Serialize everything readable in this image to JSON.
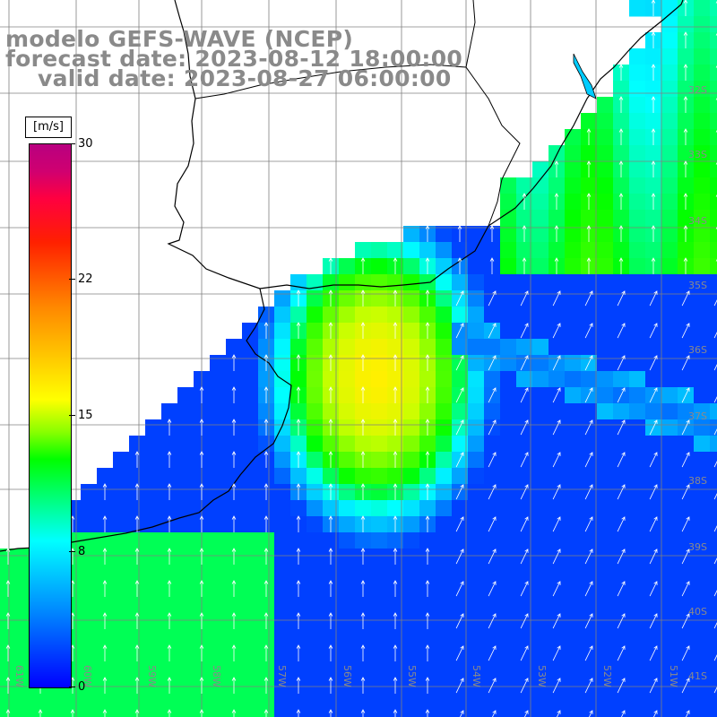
{
  "title": {
    "line1": "modelo GEFS-WAVE (NCEP)",
    "line2": "forecast date: 2023-08-12 18:00:00",
    "line3": "valid date: 2023-08-27 06:00:00"
  },
  "colorbar": {
    "unit": "[m/s]",
    "ticks": [
      {
        "label": "30",
        "value": 30
      },
      {
        "label": "22",
        "value": 22
      },
      {
        "label": "15",
        "value": 15
      },
      {
        "label": "8",
        "value": 8
      },
      {
        "label": "0",
        "value": 0
      }
    ],
    "colors": [
      "#0000ff",
      "#00ffff",
      "#00ff00",
      "#ffff00",
      "#ff8800",
      "#ff0000",
      "#b80080"
    ]
  },
  "map": {
    "lat_labels": [
      "32S",
      "33S",
      "34S",
      "35S",
      "36S",
      "37S",
      "38S",
      "39S",
      "40S",
      "41S"
    ],
    "lon_labels": [
      "61W",
      "60W",
      "59W",
      "58W",
      "57W",
      "56W",
      "55W",
      "54W",
      "53W",
      "52W",
      "51W"
    ],
    "land_color": "#ffffff",
    "grid_color": "#808080",
    "arrow_color": "#ffffff"
  }
}
